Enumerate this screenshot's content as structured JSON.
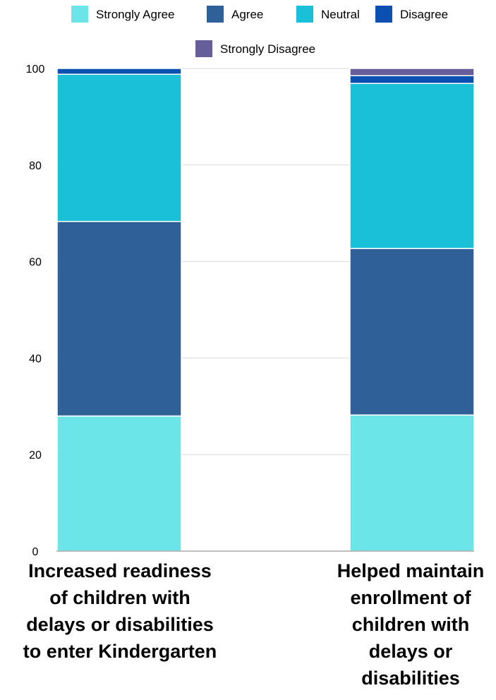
{
  "chart_data": {
    "type": "bar",
    "stacked": true,
    "categories": [
      [
        "Increased readiness",
        "of children with",
        "delays or disabilities",
        "to enter Kindergarten"
      ],
      [
        "Helped maintain",
        "enrollment of",
        "children with",
        "delays or",
        "disabilities"
      ]
    ],
    "series": [
      {
        "name": "Strongly Agree",
        "color": "#6be5e8",
        "values": [
          28,
          28.2
        ]
      },
      {
        "name": "Agree",
        "color": "#2f6098",
        "values": [
          40.3,
          34.5
        ]
      },
      {
        "name": "Neutral",
        "color": "#19c0d7",
        "values": [
          30.5,
          34.2
        ]
      },
      {
        "name": "Disagree",
        "color": "#0b4fb0",
        "values": [
          1.2,
          1.6
        ]
      },
      {
        "name": "Strongly Disagree",
        "color": "#655e9a",
        "values": [
          0,
          1.5
        ]
      }
    ],
    "ylim": [
      0,
      100
    ],
    "yticks": [
      0,
      20,
      40,
      60,
      80,
      100
    ],
    "grid": true,
    "legend_position": "top"
  }
}
